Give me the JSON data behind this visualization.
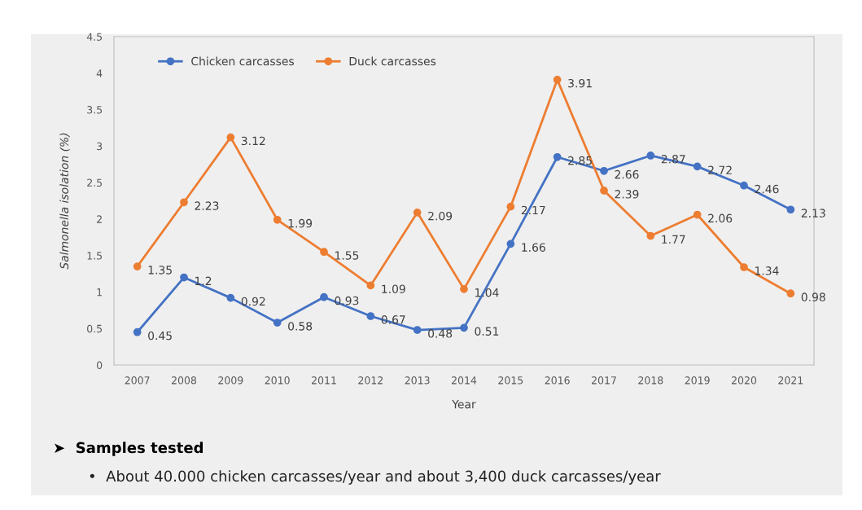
{
  "chart_data": {
    "type": "line",
    "xlabel": "Year",
    "ylabel": "Salmonella isolation (%)",
    "categories": [
      "2007",
      "2008",
      "2009",
      "2010",
      "2011",
      "2012",
      "2013",
      "2014",
      "2015",
      "2016",
      "2017",
      "2018",
      "2019",
      "2020",
      "2021"
    ],
    "series": [
      {
        "name": "Chicken carcasses",
        "color": "#4472c4",
        "values": [
          0.45,
          1.2,
          0.92,
          0.58,
          0.93,
          0.67,
          0.48,
          0.51,
          1.66,
          2.85,
          2.66,
          2.87,
          2.72,
          2.46,
          2.13
        ]
      },
      {
        "name": "Duck carcasses",
        "color": "#ed7d31",
        "values": [
          1.35,
          2.23,
          3.12,
          1.99,
          1.55,
          1.09,
          2.09,
          1.04,
          2.17,
          3.91,
          2.39,
          1.77,
          2.06,
          1.34,
          0.98
        ]
      }
    ],
    "ylim": [
      0,
      4.5
    ],
    "yticks": [
      0,
      0.5,
      1,
      1.5,
      2,
      2.5,
      3,
      3.5,
      4,
      4.5
    ],
    "grid": false,
    "legend": "top left",
    "marker": "circle",
    "line_style": "solid",
    "data_labels": true,
    "annotations": [
      "➤  Samples tested",
      "•  About 40.000 chicken carcasses/year and about 3,400 duck carcasses/year"
    ]
  }
}
